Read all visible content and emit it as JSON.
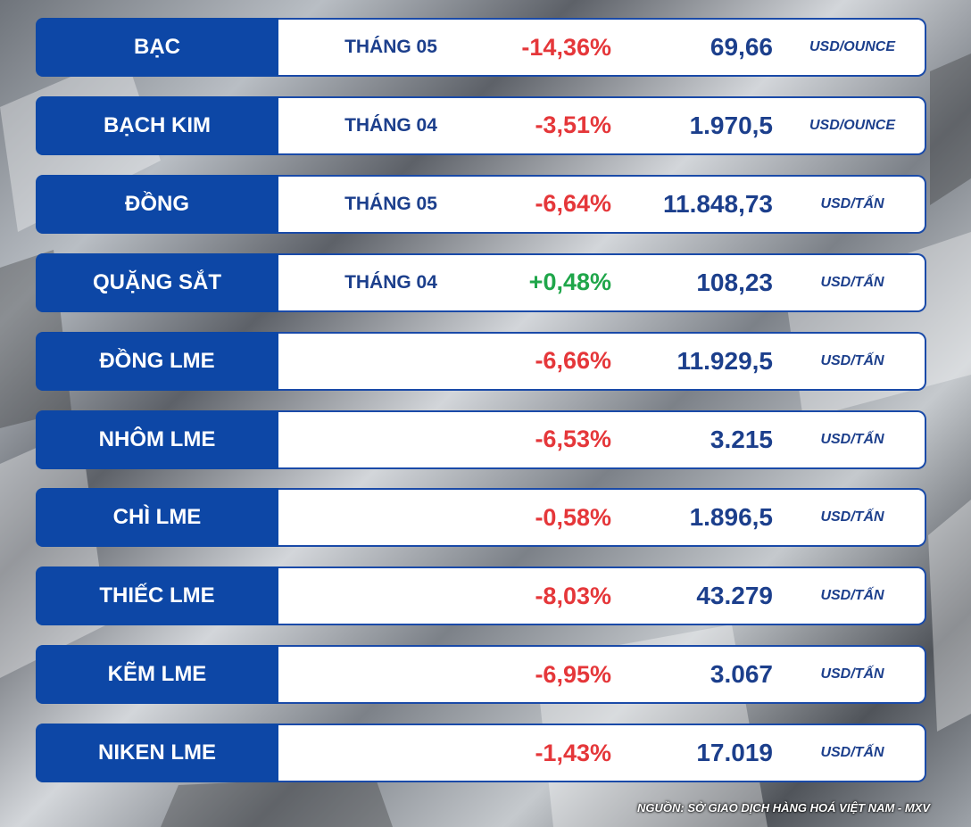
{
  "rows": [
    {
      "name": "BẠC",
      "month": "THÁNG 05",
      "change": "-14,36%",
      "change_color": "#e5373a",
      "price": "69,66",
      "unit": "USD/OUNCE"
    },
    {
      "name": "BẠCH KIM",
      "month": "THÁNG 04",
      "change": "-3,51%",
      "change_color": "#e5373a",
      "price": "1.970,5",
      "unit": "USD/OUNCE"
    },
    {
      "name": "ĐỒNG",
      "month": "THÁNG 05",
      "change": "-6,64%",
      "change_color": "#e5373a",
      "price": "11.848,73",
      "unit": "USD/TẤN"
    },
    {
      "name": "QUẶNG SẮT",
      "month": "THÁNG 04",
      "change": "+0,48%",
      "change_color": "#1fa64a",
      "price": "108,23",
      "unit": "USD/TẤN"
    },
    {
      "name": "ĐỒNG LME",
      "change": "-6,66%",
      "change_color": "#e5373a",
      "price": "11.929,5",
      "unit": "USD/TẤN"
    },
    {
      "name": "NHÔM LME",
      "change": "-6,53%",
      "change_color": "#e5373a",
      "price": "3.215",
      "unit": "USD/TẤN"
    },
    {
      "name": "CHÌ LME",
      "change": "-0,58%",
      "change_color": "#e5373a",
      "price": "1.896,5",
      "unit": "USD/TẤN"
    },
    {
      "name": "THIẾC LME",
      "change": "-8,03%",
      "change_color": "#e5373a",
      "price": "43.279",
      "unit": "USD/TẤN"
    },
    {
      "name": "KẼM LME",
      "change": "-6,95%",
      "change_color": "#e5373a",
      "price": "3.067",
      "unit": "USD/TẤN"
    },
    {
      "name": "NIKEN LME",
      "change": "-1,43%",
      "change_color": "#e5373a",
      "price": "17.019",
      "unit": "USD/TẤN"
    }
  ],
  "source": "NGUỒN: SỞ GIAO DỊCH HÀNG HOÁ VIỆT NAM - MXV"
}
